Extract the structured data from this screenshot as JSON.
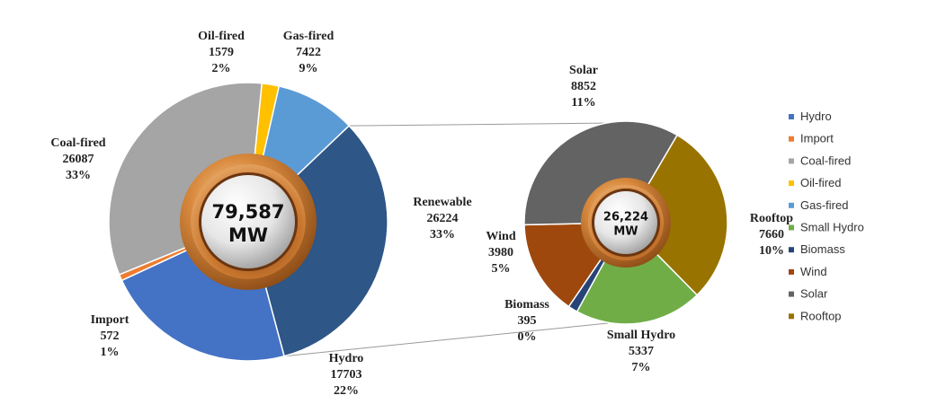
{
  "chart_data": [
    {
      "type": "pie",
      "center_label": [
        "79,587",
        "MW"
      ],
      "slices": [
        {
          "name": "Hydro",
          "value": 17703,
          "pct": "22%",
          "color": "#4472C4",
          "label": [
            "Hydro",
            "17703",
            "22%"
          ]
        },
        {
          "name": "Import",
          "value": 572,
          "pct": "1%",
          "color": "#ED7D31",
          "label": [
            "Import",
            "572",
            "1%"
          ]
        },
        {
          "name": "Coal-fired",
          "value": 26087,
          "pct": "33%",
          "color": "#A5A5A5",
          "label": [
            "Coal-fired",
            "26087",
            "33%"
          ]
        },
        {
          "name": "Oil-fired",
          "value": 1579,
          "pct": "2%",
          "color": "#FFC000",
          "label": [
            "Oil-fired",
            "1579",
            "2%"
          ]
        },
        {
          "name": "Gas-fired",
          "value": 7422,
          "pct": "9%",
          "color": "#5B9BD5",
          "label": [
            "Gas-fired",
            "7422",
            "9%"
          ]
        },
        {
          "name": "Renewable",
          "value": 26224,
          "pct": "33%",
          "color": "#2E5686",
          "label": [
            "Renewable",
            "26224",
            "33%"
          ]
        }
      ]
    },
    {
      "type": "pie",
      "center_label": [
        "26,224",
        "MW"
      ],
      "slices": [
        {
          "name": "Small Hydro",
          "value": 5337,
          "pct": "7%",
          "color": "#70AD47",
          "label": [
            "Small Hydro",
            "5337",
            "7%"
          ]
        },
        {
          "name": "Biomass",
          "value": 395,
          "pct": "0%",
          "color": "#264478",
          "label": [
            "Biomass",
            "395",
            "0%"
          ]
        },
        {
          "name": "Wind",
          "value": 3980,
          "pct": "5%",
          "color": "#9E480E",
          "label": [
            "Wind",
            "3980",
            "5%"
          ]
        },
        {
          "name": "Solar",
          "value": 8852,
          "pct": "11%",
          "color": "#636363",
          "label": [
            "Solar",
            "8852",
            "11%"
          ]
        },
        {
          "name": "Rooftop",
          "value": 7660,
          "pct": "10%",
          "color": "#997300",
          "label": [
            "Rooftop",
            "7660",
            "10%"
          ]
        }
      ]
    }
  ],
  "legend": [
    {
      "name": "Hydro",
      "color": "#4472C4"
    },
    {
      "name": "Import",
      "color": "#ED7D31"
    },
    {
      "name": "Coal-fired",
      "color": "#A5A5A5"
    },
    {
      "name": "Oil-fired",
      "color": "#FFC000"
    },
    {
      "name": "Gas-fired",
      "color": "#5B9BD5"
    },
    {
      "name": "Small Hydro",
      "color": "#70AD47"
    },
    {
      "name": "Biomass",
      "color": "#264478"
    },
    {
      "name": "Wind",
      "color": "#9E480E"
    },
    {
      "name": "Solar",
      "color": "#636363"
    },
    {
      "name": "Rooftop",
      "color": "#997300"
    }
  ]
}
